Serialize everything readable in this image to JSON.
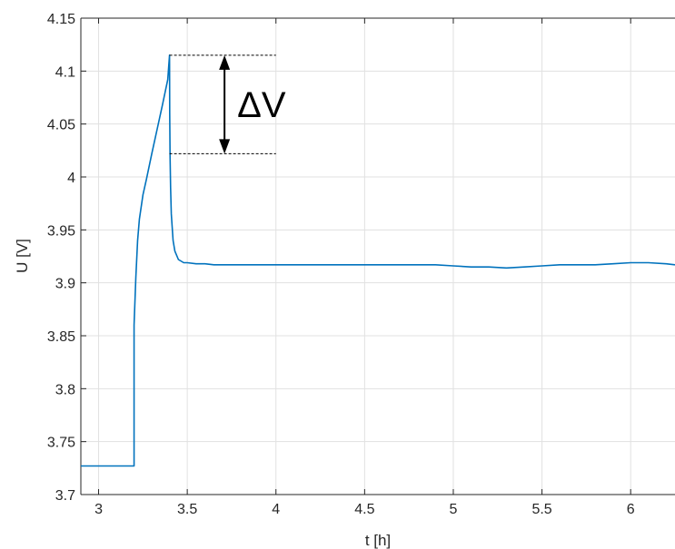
{
  "chart_data": {
    "type": "line",
    "title": "",
    "xlabel": "t [h]",
    "ylabel": "U [V]",
    "xlim": [
      2.9,
      6.25
    ],
    "ylim": [
      3.7,
      4.15
    ],
    "grid": true,
    "legend": "none",
    "x_ticks": [
      3,
      3.5,
      4,
      4.5,
      5,
      5.5,
      6
    ],
    "x_tick_labels": [
      "3",
      "3.5",
      "4",
      "4.5",
      "5",
      "5.5",
      "6"
    ],
    "y_ticks": [
      3.7,
      3.75,
      3.8,
      3.85,
      3.9,
      3.95,
      4.0,
      4.05,
      4.1,
      4.15
    ],
    "y_tick_labels": [
      "3.7",
      "3.75",
      "3.8",
      "3.85",
      "3.9",
      "3.95",
      "4",
      "4.05",
      "4.1",
      "4.15"
    ],
    "series": [
      {
        "color": "#0072BD",
        "x": [
          2.9,
          3.2,
          3.2,
          3.21,
          3.22,
          3.23,
          3.25,
          3.27,
          3.3,
          3.33,
          3.36,
          3.39,
          3.4,
          3.401,
          3.403,
          3.406,
          3.41,
          3.42,
          3.43,
          3.45,
          3.48,
          3.5,
          3.55,
          3.6,
          3.65,
          3.7,
          3.8,
          4.0,
          4.5,
          4.9,
          5.0,
          5.1,
          5.2,
          5.3,
          5.4,
          5.5,
          5.6,
          5.8,
          5.9,
          6.0,
          6.1,
          6.2,
          6.25
        ],
        "y": [
          3.727,
          3.727,
          3.86,
          3.905,
          3.94,
          3.96,
          3.983,
          3.998,
          4.022,
          4.045,
          4.068,
          4.092,
          4.115,
          4.06,
          4.02,
          3.99,
          3.965,
          3.94,
          3.93,
          3.922,
          3.919,
          3.919,
          3.918,
          3.918,
          3.917,
          3.917,
          3.917,
          3.917,
          3.917,
          3.917,
          3.916,
          3.915,
          3.915,
          3.914,
          3.915,
          3.916,
          3.917,
          3.917,
          3.918,
          3.919,
          3.919,
          3.918,
          3.917
        ]
      }
    ],
    "annotation": {
      "label": "ΔV",
      "x_start": 3.4,
      "x_end": 4.0,
      "upper_y": 4.115,
      "lower_y": 4.022,
      "arrow_x": 3.71
    }
  }
}
